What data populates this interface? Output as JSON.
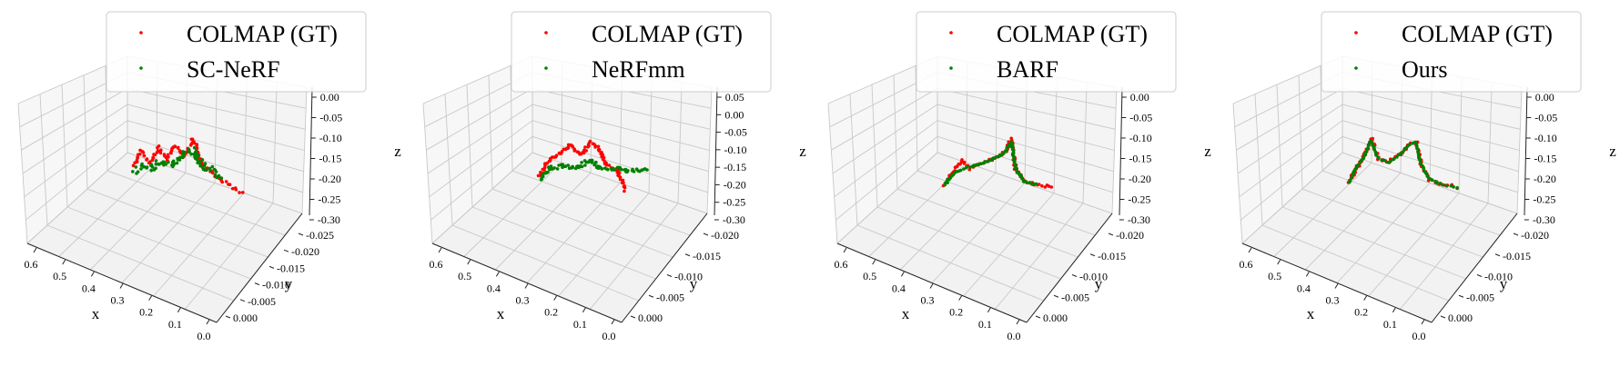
{
  "colors": {
    "gt": "#ff0000",
    "pred": "#008000",
    "grid": "#c8c8c8",
    "pane_floor": "#f2f2f2",
    "pane_wall": "#f7f7f7"
  },
  "chart_data": [
    {
      "type": "scatter",
      "projection": "3d",
      "xlabel": "x",
      "ylabel": "y",
      "zlabel": "z",
      "x_ticks": [
        "0.6",
        "0.5",
        "0.4",
        "0.3",
        "0.2",
        "0.1",
        "0.0"
      ],
      "y_ticks": [
        "0.000",
        "-0.005",
        "-0.010",
        "-0.015",
        "-0.020",
        "-0.025"
      ],
      "z_ticks": [
        "0.00",
        "-0.05",
        "-0.10",
        "-0.15",
        "-0.20",
        "-0.25",
        "-0.30"
      ],
      "grid": true,
      "legend_position": "top",
      "series": [
        {
          "name": "COLMAP (GT)",
          "color": "#ff0000"
        },
        {
          "name": "SC-NeRF",
          "color": "#008000"
        }
      ]
    },
    {
      "type": "scatter",
      "projection": "3d",
      "xlabel": "x",
      "ylabel": "y",
      "zlabel": "z",
      "x_ticks": [
        "0.6",
        "0.5",
        "0.4",
        "0.3",
        "0.2",
        "0.1",
        "0.0"
      ],
      "y_ticks": [
        "0.000",
        "-0.005",
        "-0.010",
        "-0.015",
        "-0.020"
      ],
      "z_ticks": [
        "0.05",
        "0.00",
        "-0.05",
        "-0.10",
        "-0.15",
        "-0.20",
        "-0.25",
        "-0.30"
      ],
      "grid": true,
      "legend_position": "top",
      "series": [
        {
          "name": "COLMAP (GT)",
          "color": "#ff0000"
        },
        {
          "name": "NeRFmm",
          "color": "#008000"
        }
      ]
    },
    {
      "type": "scatter",
      "projection": "3d",
      "xlabel": "x",
      "ylabel": "y",
      "zlabel": "z",
      "x_ticks": [
        "0.6",
        "0.5",
        "0.4",
        "0.3",
        "0.2",
        "0.1",
        "0.0"
      ],
      "y_ticks": [
        "0.000",
        "-0.005",
        "-0.010",
        "-0.015",
        "-0.020"
      ],
      "z_ticks": [
        "0.00",
        "-0.05",
        "-0.10",
        "-0.15",
        "-0.20",
        "-0.25",
        "-0.30"
      ],
      "grid": true,
      "legend_position": "top",
      "series": [
        {
          "name": "COLMAP (GT)",
          "color": "#ff0000"
        },
        {
          "name": "BARF",
          "color": "#008000"
        }
      ]
    },
    {
      "type": "scatter",
      "projection": "3d",
      "xlabel": "x",
      "ylabel": "y",
      "zlabel": "z",
      "x_ticks": [
        "0.6",
        "0.5",
        "0.4",
        "0.3",
        "0.2",
        "0.1",
        "0.0"
      ],
      "y_ticks": [
        "0.000",
        "-0.005",
        "-0.010",
        "-0.015",
        "-0.020"
      ],
      "z_ticks": [
        "0.00",
        "-0.05",
        "-0.10",
        "-0.15",
        "-0.20",
        "-0.25",
        "-0.30"
      ],
      "grid": true,
      "legend_position": "top",
      "series": [
        {
          "name": "COLMAP (GT)",
          "color": "#ff0000"
        },
        {
          "name": "Ours",
          "color": "#008000"
        }
      ]
    }
  ]
}
